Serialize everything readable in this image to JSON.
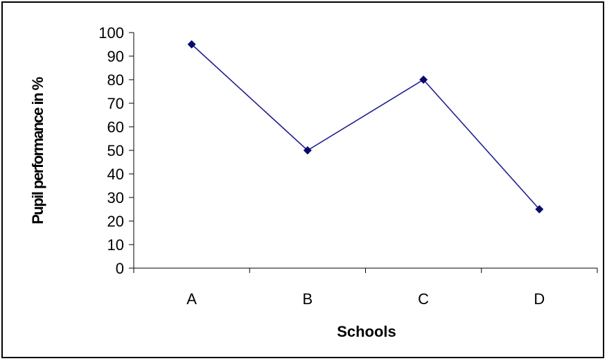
{
  "chart_data": {
    "type": "line",
    "title": "",
    "xlabel": "Schools",
    "ylabel": "Pupil performance in %",
    "categories": [
      "A",
      "B",
      "C",
      "D"
    ],
    "series": [
      {
        "values": [
          95,
          50,
          80,
          25
        ]
      }
    ],
    "ylim": [
      0,
      100
    ],
    "yticks": [
      "0",
      "10",
      "20",
      "30",
      "40",
      "50",
      "60",
      "70",
      "80",
      "90",
      "100"
    ],
    "grid": false,
    "legend": "none",
    "colors": {
      "line": "#1f1f8f",
      "marker": "#0a0a6a",
      "axis": "#000000"
    }
  }
}
